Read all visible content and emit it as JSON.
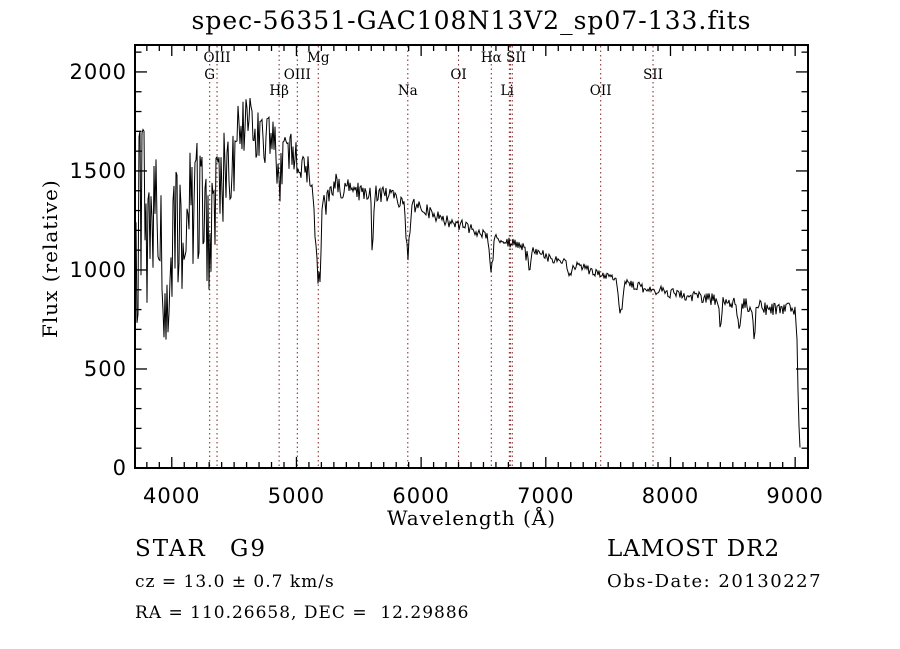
{
  "title": "spec-56351-GAC108N13V2_sp07-133.fits",
  "footer": {
    "object_class": "STAR",
    "subclass": "G9",
    "cz_line": "cz = 13.0 ± 0.7 km/s",
    "radec_line": "RA = 110.26658, DEC =  12.29886",
    "survey": "LAMOST DR2",
    "obs_date_line": "Obs-Date: 20130227"
  },
  "chart_data": {
    "type": "line",
    "title": "spec-56351-GAC108N13V2_sp07-133.fits",
    "xlabel": "Wavelength (Å)",
    "ylabel": "Flux (relative)",
    "xlim": [
      3705,
      9103
    ],
    "ylim": [
      0,
      2136
    ],
    "x_major_ticks": [
      4000,
      5000,
      6000,
      7000,
      8000,
      9000
    ],
    "x_minor_step": 100,
    "y_major_ticks": [
      0,
      500,
      1000,
      1500,
      2000
    ],
    "y_minor_step": 100,
    "grid": false,
    "legend": "none",
    "line_color": "#000000",
    "marker_line_color": "#8b3535",
    "spectral_markers": [
      {
        "label": "OIII",
        "row": 1,
        "lines": [
          4363
        ]
      },
      {
        "label": "G",
        "row": 2,
        "lines": [
          4304
        ]
      },
      {
        "label": "Hβ",
        "row": 3,
        "lines": [
          4861
        ]
      },
      {
        "label": "OIII",
        "row": 2,
        "lines": [
          5007
        ]
      },
      {
        "label": "Mg",
        "row": 1,
        "lines": [
          5175
        ]
      },
      {
        "label": "Na",
        "row": 3,
        "lines": [
          5893
        ]
      },
      {
        "label": "OI",
        "row": 2,
        "lines": [
          6300
        ]
      },
      {
        "label": "Hα",
        "row": 1,
        "lines": [
          6563
        ]
      },
      {
        "label": "SII",
        "row": 1,
        "lines": [
          6716,
          6731
        ],
        "label_at": 6762
      },
      {
        "label": "Li",
        "row": 3,
        "lines": [
          6708
        ],
        "label_at": 6690
      },
      {
        "label": "OII",
        "row": 3,
        "lines": [
          7440
        ]
      },
      {
        "label": "SII",
        "row": 2,
        "lines": [
          7860
        ]
      }
    ],
    "continuum": [
      [
        3705,
        1250
      ],
      [
        3720,
        1120
      ],
      [
        3760,
        1280
      ],
      [
        3800,
        1150
      ],
      [
        3850,
        1080
      ],
      [
        3900,
        1180
      ],
      [
        3950,
        1100
      ],
      [
        4000,
        1180
      ],
      [
        4050,
        1240
      ],
      [
        4100,
        1320
      ],
      [
        4150,
        1290
      ],
      [
        4200,
        1340
      ],
      [
        4250,
        1310
      ],
      [
        4320,
        1390
      ],
      [
        4400,
        1500
      ],
      [
        4500,
        1620
      ],
      [
        4600,
        1700
      ],
      [
        4660,
        1720
      ],
      [
        4720,
        1680
      ],
      [
        4800,
        1640
      ],
      [
        4900,
        1640
      ],
      [
        5000,
        1580
      ],
      [
        5080,
        1520
      ],
      [
        5160,
        1460
      ],
      [
        5240,
        1400
      ],
      [
        5320,
        1430
      ],
      [
        5400,
        1410
      ],
      [
        5500,
        1400
      ],
      [
        5600,
        1390
      ],
      [
        5700,
        1380
      ],
      [
        5800,
        1360
      ],
      [
        5900,
        1330
      ],
      [
        6000,
        1320
      ],
      [
        6100,
        1280
      ],
      [
        6200,
        1250
      ],
      [
        6300,
        1230
      ],
      [
        6400,
        1210
      ],
      [
        6500,
        1180
      ],
      [
        6600,
        1160
      ],
      [
        6700,
        1140
      ],
      [
        6800,
        1120
      ],
      [
        6900,
        1100
      ],
      [
        7000,
        1070
      ],
      [
        7100,
        1050
      ],
      [
        7200,
        1030
      ],
      [
        7300,
        1010
      ],
      [
        7400,
        990
      ],
      [
        7500,
        965
      ],
      [
        7600,
        940
      ],
      [
        7700,
        925
      ],
      [
        7800,
        905
      ],
      [
        7900,
        895
      ],
      [
        8000,
        885
      ],
      [
        8100,
        875
      ],
      [
        8200,
        865
      ],
      [
        8300,
        855
      ],
      [
        8400,
        845
      ],
      [
        8500,
        835
      ],
      [
        8600,
        825
      ],
      [
        8700,
        815
      ],
      [
        8800,
        800
      ],
      [
        8900,
        795
      ],
      [
        8960,
        810
      ],
      [
        9000,
        790
      ],
      [
        9015,
        650
      ],
      [
        9030,
        200
      ],
      [
        9045,
        20
      ]
    ],
    "noise_envelope": [
      [
        3705,
        650
      ],
      [
        3750,
        520
      ],
      [
        3850,
        480
      ],
      [
        3950,
        450
      ],
      [
        4050,
        420
      ],
      [
        4150,
        360
      ],
      [
        4250,
        330
      ],
      [
        4350,
        300
      ],
      [
        4450,
        260
      ],
      [
        4550,
        230
      ],
      [
        4650,
        200
      ],
      [
        4750,
        170
      ],
      [
        4850,
        150
      ],
      [
        4950,
        130
      ],
      [
        5050,
        110
      ],
      [
        5150,
        100
      ],
      [
        5250,
        85
      ],
      [
        5350,
        75
      ],
      [
        5450,
        70
      ],
      [
        5550,
        58
      ],
      [
        5700,
        50
      ],
      [
        5900,
        45
      ],
      [
        6100,
        42
      ],
      [
        6300,
        38
      ],
      [
        6500,
        35
      ],
      [
        6700,
        33
      ],
      [
        7000,
        30
      ],
      [
        7400,
        28
      ],
      [
        7800,
        30
      ],
      [
        8200,
        36
      ],
      [
        8500,
        42
      ],
      [
        8800,
        46
      ],
      [
        9045,
        28
      ]
    ],
    "absorption_features": [
      {
        "center": 3933,
        "sigma": 12,
        "depth": 350
      },
      {
        "center": 4101,
        "sigma": 12,
        "depth": 300
      },
      {
        "center": 4304,
        "sigma": 15,
        "depth": 300
      },
      {
        "center": 4340,
        "sigma": 12,
        "depth": 300
      },
      {
        "center": 4861,
        "sigma": 12,
        "depth": 250
      },
      {
        "center": 5175,
        "sigma": 22,
        "depth": 480
      },
      {
        "center": 5610,
        "sigma": 8,
        "depth": 280
      },
      {
        "center": 5893,
        "sigma": 14,
        "depth": 260
      },
      {
        "center": 6563,
        "sigma": 12,
        "depth": 170
      },
      {
        "center": 6870,
        "sigma": 12,
        "depth": 100
      },
      {
        "center": 7190,
        "sigma": 15,
        "depth": 60
      },
      {
        "center": 7600,
        "sigma": 16,
        "depth": 150
      },
      {
        "center": 8400,
        "sigma": 10,
        "depth": 120
      },
      {
        "center": 8550,
        "sigma": 10,
        "depth": 130
      },
      {
        "center": 8670,
        "sigma": 10,
        "depth": 140
      }
    ],
    "flux_cutoff_wavelength": 9045,
    "noise_seed": 20130227
  }
}
